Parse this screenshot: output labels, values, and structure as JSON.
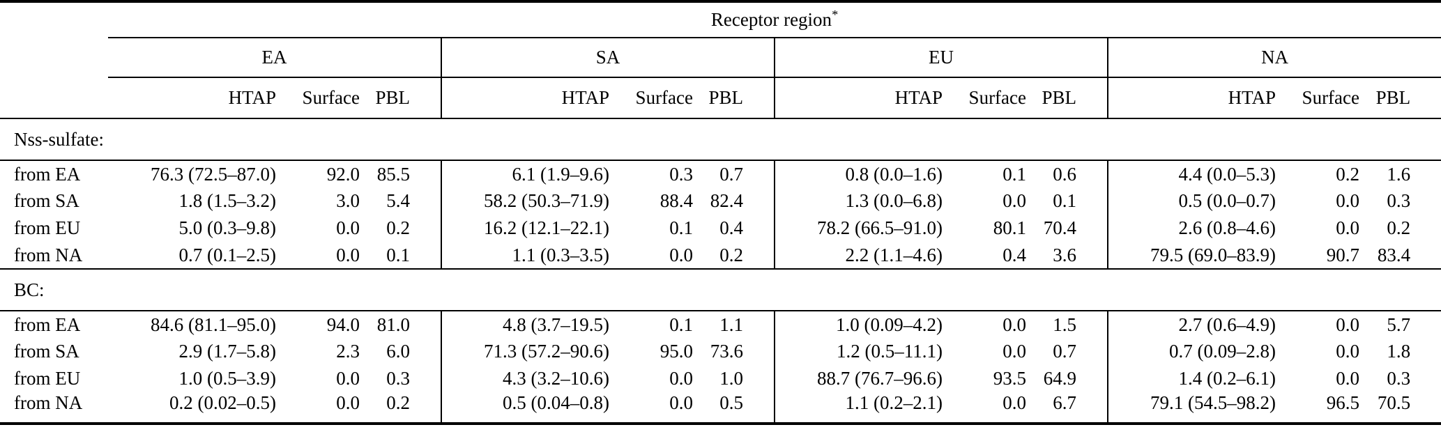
{
  "table": {
    "title": "Receptor region",
    "title_asterisk": "*",
    "regions": [
      "EA",
      "SA",
      "EU",
      "NA"
    ],
    "metric_headers": [
      "HTAP",
      "Surface",
      "PBL"
    ],
    "sections": [
      {
        "label": "Nss-sulfate:",
        "rows": [
          {
            "label": "from EA",
            "cells": [
              "76.3 (72.5–87.0)",
              "92.0",
              "85.5",
              "6.1 (1.9–9.6)",
              "0.3",
              "0.7",
              "0.8 (0.0–1.6)",
              "0.1",
              "0.6",
              "4.4 (0.0–5.3)",
              "0.2",
              "1.6"
            ]
          },
          {
            "label": "from SA",
            "cells": [
              "1.8 (1.5–3.2)",
              "3.0",
              "5.4",
              "58.2 (50.3–71.9)",
              "88.4",
              "82.4",
              "1.3 (0.0–6.8)",
              "0.0",
              "0.1",
              "0.5 (0.0–0.7)",
              "0.0",
              "0.3"
            ]
          },
          {
            "label": "from EU",
            "cells": [
              "5.0 (0.3–9.8)",
              "0.0",
              "0.2",
              "16.2 (12.1–22.1)",
              "0.1",
              "0.4",
              "78.2 (66.5–91.0)",
              "80.1",
              "70.4",
              "2.6 (0.8–4.6)",
              "0.0",
              "0.2"
            ]
          },
          {
            "label": "from NA",
            "cells": [
              "0.7 (0.1–2.5)",
              "0.0",
              "0.1",
              "1.1 (0.3–3.5)",
              "0.0",
              "0.2",
              "2.2 (1.1–4.6)",
              "0.4",
              "3.6",
              "79.5 (69.0–83.9)",
              "90.7",
              "83.4"
            ]
          }
        ]
      },
      {
        "label": "BC:",
        "rows": [
          {
            "label": "from EA",
            "cells": [
              "84.6 (81.1–95.0)",
              "94.0",
              "81.0",
              "4.8 (3.7–19.5)",
              "0.1",
              "1.1",
              "1.0 (0.09–4.2)",
              "0.0",
              "1.5",
              "2.7 (0.6–4.9)",
              "0.0",
              "5.7"
            ]
          },
          {
            "label": "from SA",
            "cells": [
              "2.9 (1.7–5.8)",
              "2.3",
              "6.0",
              "71.3 (57.2–90.6)",
              "95.0",
              "73.6",
              "1.2 (0.5–11.1)",
              "0.0",
              "0.7",
              "0.7 (0.09–2.8)",
              "0.0",
              "1.8"
            ]
          },
          {
            "label": "from EU",
            "cells": [
              "1.0 (0.5–3.9)",
              "0.0",
              "0.3",
              "4.3 (3.2–10.6)",
              "0.0",
              "1.0",
              "88.7 (76.7–96.6)",
              "93.5",
              "64.9",
              "1.4 (0.2–6.1)",
              "0.0",
              "0.3"
            ]
          },
          {
            "label": "from NA",
            "cells": [
              "0.2 (0.02–0.5)",
              "0.0",
              "0.2",
              "0.5 (0.04–0.8)",
              "0.0",
              "0.5",
              "1.1 (0.2–2.1)",
              "0.0",
              "6.7",
              "79.1 (54.5–98.2)",
              "96.5",
              "70.5"
            ]
          }
        ]
      }
    ]
  }
}
